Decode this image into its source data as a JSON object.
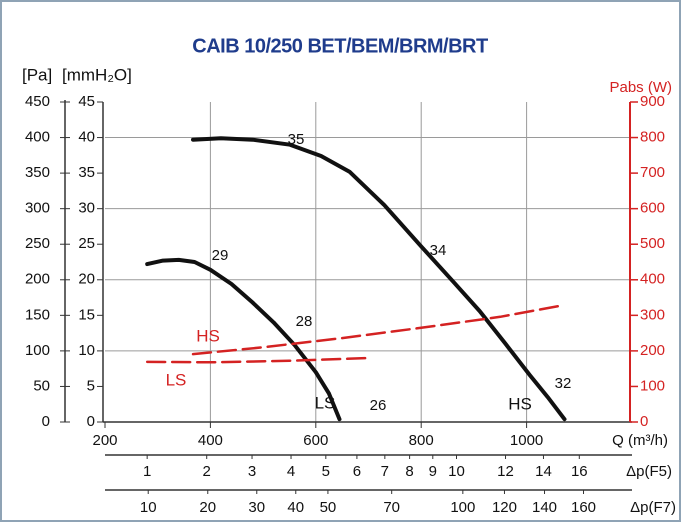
{
  "chart_data": {
    "type": "line",
    "title": "CAIB 10/250 BET/BEM/BRM/BRT",
    "y_label": "[Pa]",
    "y_mm_label": "[mmH₂O]",
    "y2_label": "Pabs (W)",
    "x_label": "Q (m³/h)",
    "xlim": [
      200,
      1200
    ],
    "xticks": [
      200,
      400,
      600,
      800,
      1000
    ],
    "ylim": [
      0,
      450
    ],
    "yticks": [
      0,
      50,
      100,
      150,
      200,
      250,
      300,
      350,
      400,
      450
    ],
    "y_mm_lim": [
      0,
      45
    ],
    "y_mm_ticks": [
      0,
      5,
      10,
      15,
      20,
      25,
      30,
      35,
      40,
      45
    ],
    "y2lim": [
      0,
      900
    ],
    "y2ticks": [
      0,
      100,
      200,
      300,
      400,
      500,
      600,
      700,
      800,
      900
    ],
    "grid": true,
    "series": [
      {
        "name": "HS",
        "color": "#111111",
        "x": [
          367,
          420,
          480,
          551,
          610,
          664,
          730,
          800,
          860,
          911,
          960,
          1006,
          1040,
          1072
        ],
        "values": [
          397,
          399,
          397,
          390,
          374,
          352,
          305,
          247,
          198,
          156,
          110,
          66,
          35,
          4
        ]
      },
      {
        "name": "LS",
        "color": "#111111",
        "x": [
          280,
          310,
          340,
          370,
          400,
          440,
          480,
          520,
          560,
          600,
          625,
          645
        ],
        "values": [
          222,
          227,
          228,
          225,
          214,
          194,
          168,
          140,
          108,
          70,
          40,
          4
        ]
      },
      {
        "name": "HS",
        "color": "#d42222",
        "axis": "y2",
        "x": [
          367,
          500,
          650,
          800,
          950,
          1072
        ],
        "values": [
          191,
          210,
          236,
          265,
          296,
          329
        ]
      },
      {
        "name": "LS",
        "color": "#d42222",
        "axis": "y2",
        "x": [
          280,
          400,
          550,
          702
        ],
        "values": [
          169,
          168,
          172,
          180
        ]
      }
    ],
    "annotations": [
      "35",
      "34",
      "32",
      "29",
      "28",
      "26"
    ],
    "dp_f5_label": "Δp(F5)",
    "dp_f5_ticks": [
      1,
      2,
      3,
      4,
      5,
      6,
      7,
      8,
      9,
      10,
      12,
      14,
      16
    ],
    "dp_f5_q": [
      280,
      393,
      479,
      553,
      619,
      678,
      731,
      778,
      822,
      867,
      960,
      1032,
      1100
    ],
    "dp_f7_label": "Δp(F7)",
    "dp_f7_ticks": [
      10,
      20,
      30,
      40,
      50,
      70,
      100,
      120,
      140,
      160
    ],
    "dp_f7_q": [
      282,
      395,
      488,
      562,
      623,
      744,
      879,
      958,
      1034,
      1108
    ]
  }
}
